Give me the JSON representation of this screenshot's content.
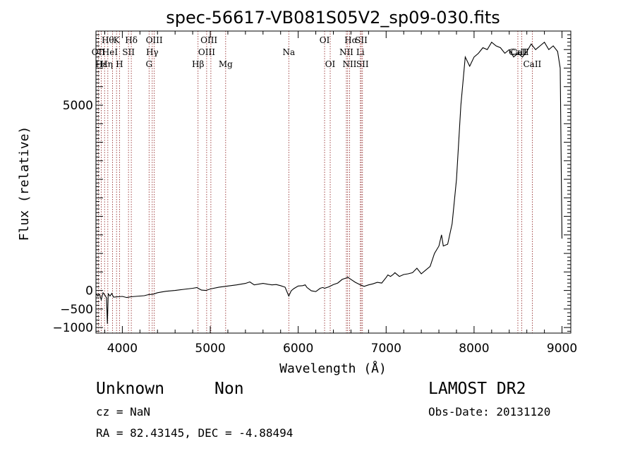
{
  "chart_data": {
    "type": "line",
    "title": "spec-56617-VB081S05V2_sp09-030.fits",
    "xlabel": "Wavelength (Å)",
    "ylabel": "Flux (relative)",
    "xlim": [
      3700,
      9100
    ],
    "ylim": [
      -1150,
      7000
    ],
    "x_ticks": [
      4000,
      5000,
      6000,
      7000,
      8000,
      9000
    ],
    "x_tick_labels": [
      "4000",
      "5000",
      "6000",
      "7000",
      "8000",
      "9000"
    ],
    "y_ticks": [
      -1000,
      -500,
      0,
      5000
    ],
    "y_tick_labels": [
      "−1000",
      "−500",
      "0",
      "5000"
    ],
    "series": [
      {
        "x": [
          3700,
          3720,
          3740,
          3760,
          3780,
          3800,
          3820,
          3830,
          3840,
          3860,
          3880,
          3900,
          3950,
          4000,
          4050,
          4100,
          4150,
          4200,
          4250,
          4300,
          4350,
          4400,
          4450,
          4500,
          4600,
          4700,
          4800,
          4850,
          4862,
          4900,
          4950,
          5000,
          5100,
          5200,
          5300,
          5400,
          5450,
          5500,
          5600,
          5700,
          5750,
          5800,
          5850,
          5893,
          5920,
          5950,
          6000,
          6050,
          6080,
          6100,
          6150,
          6200,
          6250,
          6280,
          6300,
          6350,
          6400,
          6450,
          6500,
          6550,
          6563,
          6600,
          6650,
          6700,
          6750,
          6800,
          6850,
          6900,
          6950,
          7000,
          7020,
          7050,
          7080,
          7100,
          7150,
          7200,
          7250,
          7300,
          7350,
          7400,
          7450,
          7500,
          7550,
          7600,
          7630,
          7650,
          7700,
          7750,
          7800,
          7850,
          7900,
          7950,
          8000,
          8050,
          8100,
          8150,
          8200,
          8250,
          8300,
          8350,
          8400,
          8450,
          8500,
          8550,
          8600,
          8650,
          8700,
          8750,
          8800,
          8850,
          8900,
          8950,
          8980,
          9000
        ],
        "y": [
          -80,
          -150,
          -100,
          -250,
          -60,
          -120,
          -200,
          -900,
          -90,
          -150,
          -80,
          -180,
          -170,
          -160,
          -190,
          -170,
          -160,
          -150,
          -140,
          -110,
          -100,
          -60,
          -40,
          -20,
          0,
          30,
          60,
          80,
          60,
          10,
          0,
          40,
          90,
          120,
          150,
          190,
          230,
          150,
          190,
          150,
          160,
          130,
          90,
          -150,
          -10,
          50,
          120,
          130,
          150,
          80,
          -10,
          -30,
          60,
          80,
          60,
          100,
          160,
          200,
          300,
          340,
          360,
          300,
          220,
          160,
          110,
          150,
          180,
          220,
          200,
          350,
          420,
          380,
          430,
          480,
          380,
          430,
          450,
          480,
          600,
          450,
          550,
          650,
          1000,
          1200,
          1500,
          1200,
          1250,
          1800,
          3000,
          5000,
          6300,
          6050,
          6300,
          6400,
          6550,
          6500,
          6700,
          6600,
          6550,
          6400,
          6500,
          6300,
          6400,
          6300,
          6450,
          6650,
          6500,
          6600,
          6700,
          6500,
          6600,
          6450,
          6000,
          1400
        ]
      }
    ],
    "line_labels_row1": [
      {
        "x": 3835,
        "text": "Hθ"
      },
      {
        "x": 3934,
        "text": "K"
      },
      {
        "x": 4102,
        "text": "Hδ"
      },
      {
        "x": 4363,
        "text": "OIII"
      },
      {
        "x": 4985,
        "text": "OIII"
      },
      {
        "x": 6300,
        "text": "OI"
      },
      {
        "x": 6600,
        "text": "Hα"
      },
      {
        "x": 6717,
        "text": "SII"
      }
    ],
    "line_labels_row2": [
      {
        "x": 3727,
        "text": "OII"
      },
      {
        "x": 3860,
        "text": "HeI"
      },
      {
        "x": 4070,
        "text": "SII"
      },
      {
        "x": 4340,
        "text": "Hγ"
      },
      {
        "x": 4959,
        "text": "OIII"
      },
      {
        "x": 5893,
        "text": "Na"
      },
      {
        "x": 6548,
        "text": "NII"
      },
      {
        "x": 6707,
        "text": "Li"
      },
      {
        "x": 8520,
        "text": "CaII"
      },
      {
        "x": 8498,
        "text": "CaII"
      }
    ],
    "line_labels_row3": [
      {
        "x": 3760,
        "text": "Hε"
      },
      {
        "x": 3820,
        "text": "Hη"
      },
      {
        "x": 3968,
        "text": "H"
      },
      {
        "x": 4304,
        "text": "G"
      },
      {
        "x": 4861,
        "text": "Hβ"
      },
      {
        "x": 5175,
        "text": "Mg"
      },
      {
        "x": 6364,
        "text": "OI"
      },
      {
        "x": 6584,
        "text": "NII"
      },
      {
        "x": 6731,
        "text": "SII"
      },
      {
        "x": 8662,
        "text": "CaII"
      }
    ],
    "ref_lines": [
      3727,
      3760,
      3798,
      3835,
      3889,
      3934,
      3968,
      4070,
      4102,
      4304,
      4340,
      4363,
      4861,
      4959,
      5007,
      5175,
      5893,
      6300,
      6364,
      6548,
      6563,
      6584,
      6707,
      6717,
      6731,
      8498,
      8542,
      8662
    ],
    "colors": {
      "spectrum": "#000000",
      "ref_line": "#8b1a1a"
    }
  },
  "footer": {
    "object_class": "Unknown",
    "subclass": "Non",
    "survey": "LAMOST DR2",
    "cz": "cz = NaN",
    "obs_date": "Obs-Date: 20131120",
    "radec": "RA =  82.43145, DEC =  -4.88494"
  }
}
